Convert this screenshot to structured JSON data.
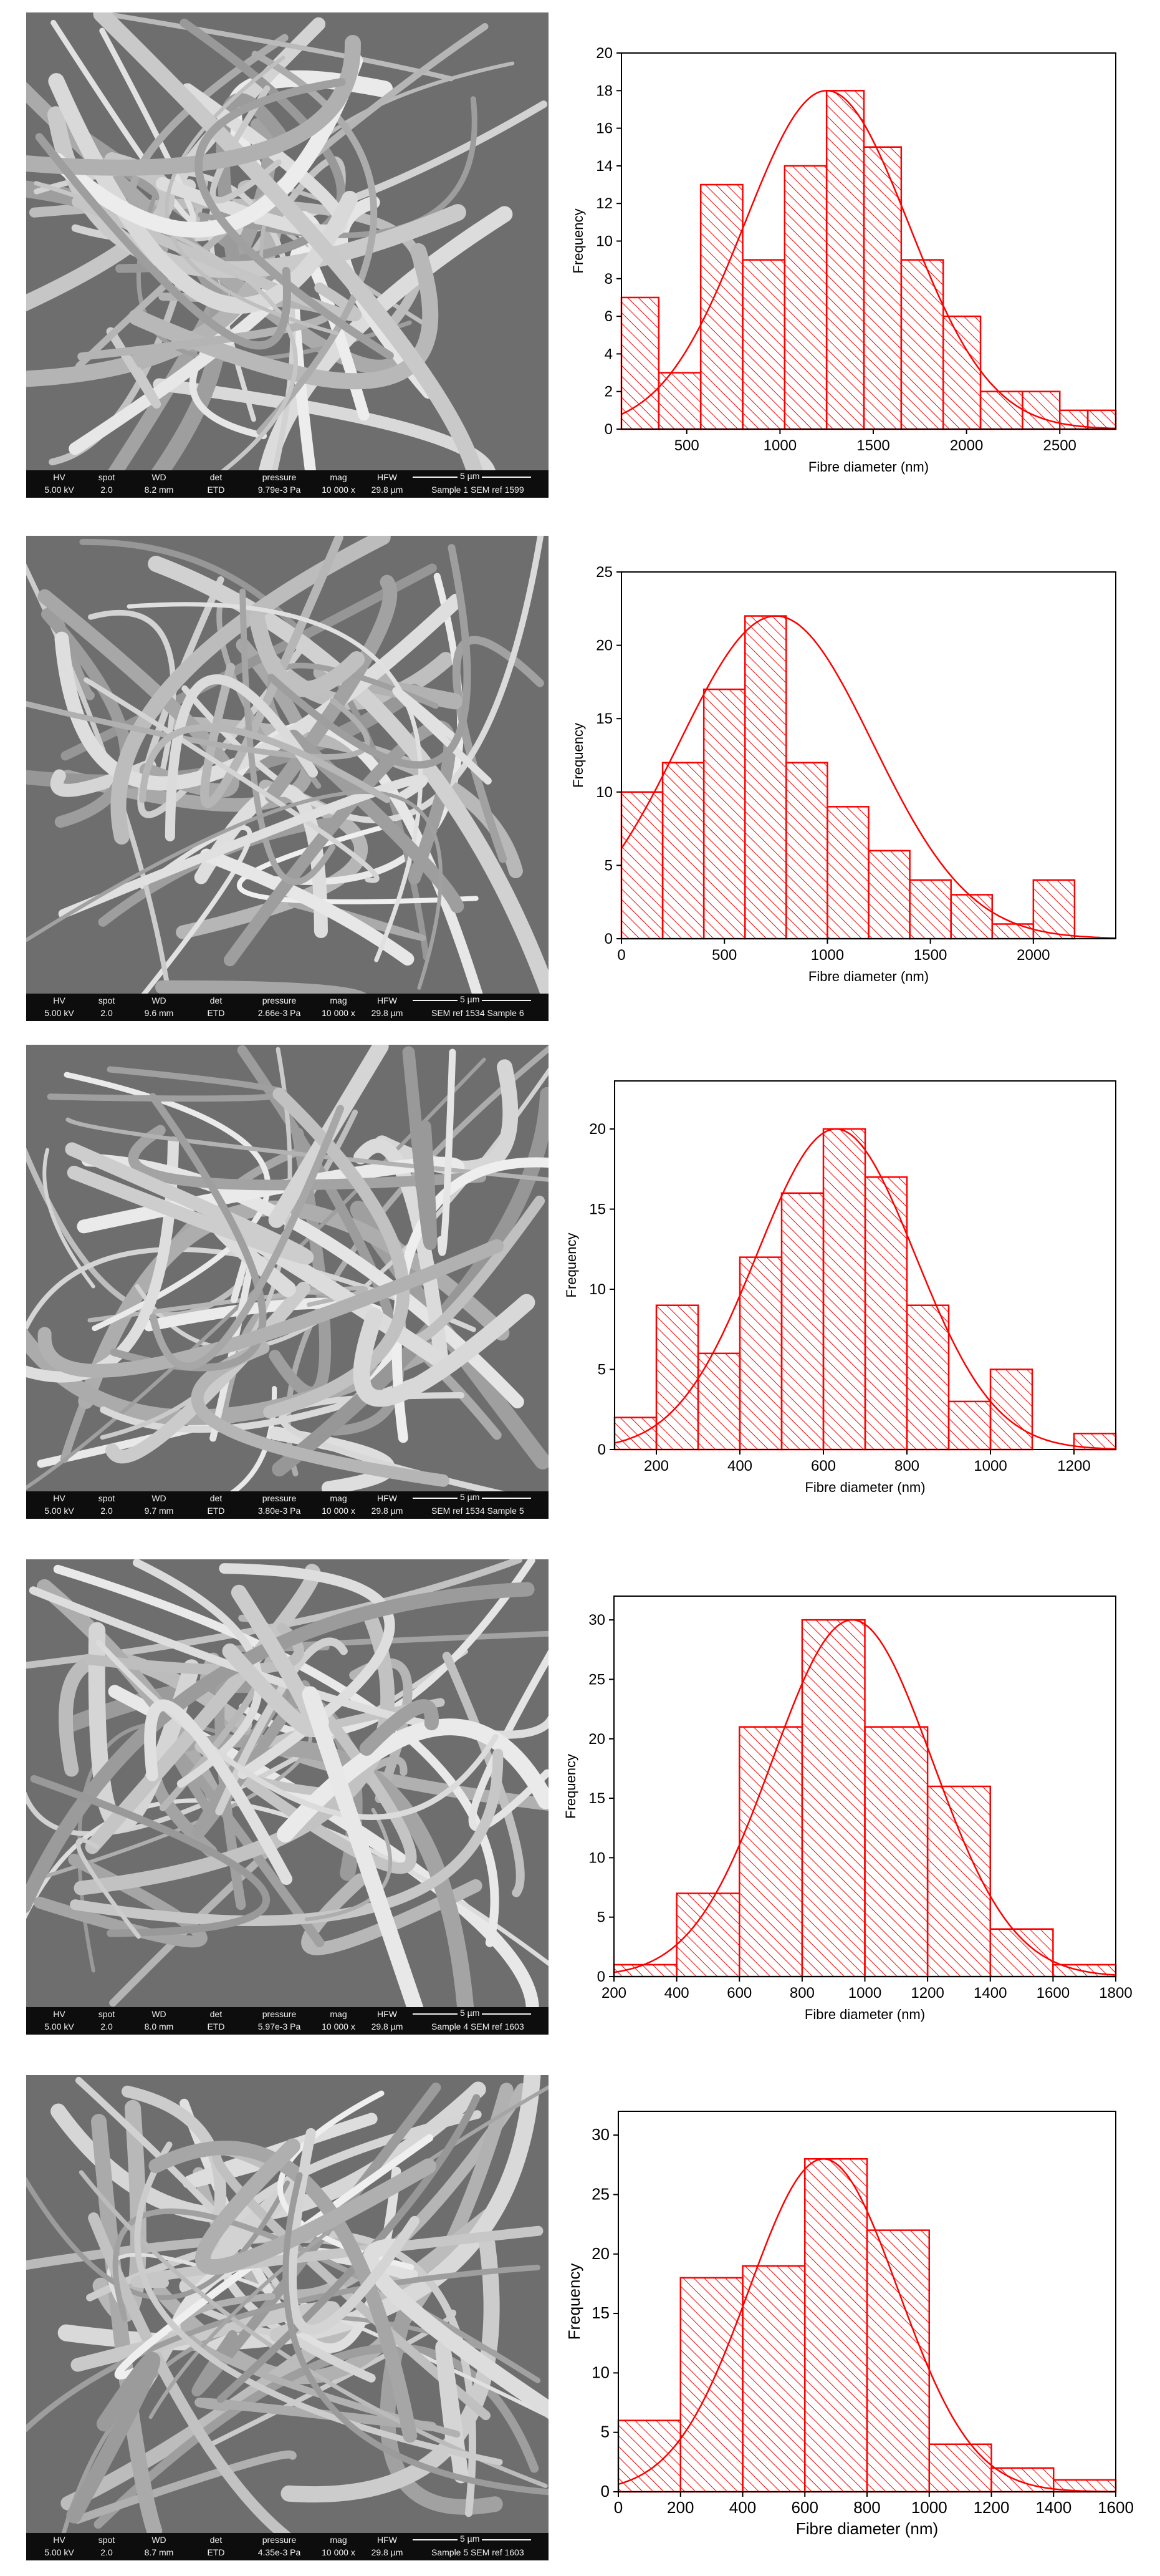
{
  "panels": [
    {
      "sem": {
        "headers": [
          "HV",
          "spot",
          "WD",
          "det",
          "pressure",
          "mag",
          "HFW"
        ],
        "values": [
          "5.00 kV",
          "2.0",
          "8.2 mm",
          "ETD",
          "9.79e-3 Pa",
          "10 000 x",
          "29.8 µm"
        ],
        "scale": "5 µm",
        "sample": "Sample 1 SEM ref 1599"
      },
      "chart": {
        "ytick_font": 24,
        "xlabel_font": 22,
        "ylabel_font": 22
      }
    },
    {
      "sem": {
        "headers": [
          "HV",
          "spot",
          "WD",
          "det",
          "pressure",
          "mag",
          "HFW"
        ],
        "values": [
          "5.00 kV",
          "2.0",
          "9.6 mm",
          "ETD",
          "2.66e-3 Pa",
          "10 000 x",
          "29.8 µm"
        ],
        "scale": "5 µm",
        "sample": "SEM ref 1534 Sample 6"
      },
      "chart": {
        "ytick_font": 24,
        "xlabel_font": 22,
        "ylabel_font": 22
      }
    },
    {
      "sem": {
        "headers": [
          "HV",
          "spot",
          "WD",
          "det",
          "pressure",
          "mag",
          "HFW"
        ],
        "values": [
          "5.00 kV",
          "2.0",
          "9.7 mm",
          "ETD",
          "3.80e-3 Pa",
          "10 000 x",
          "29.8 µm"
        ],
        "scale": "5 µm",
        "sample": "SEM ref 1534 Sample 5"
      },
      "chart": {
        "ytick_font": 24,
        "xlabel_font": 22,
        "ylabel_font": 22
      }
    },
    {
      "sem": {
        "headers": [
          "HV",
          "spot",
          "WD",
          "det",
          "pressure",
          "mag",
          "HFW"
        ],
        "values": [
          "5.00 kV",
          "2.0",
          "8.0 mm",
          "ETD",
          "5.97e-3 Pa",
          "10 000 x",
          "29.8 µm"
        ],
        "scale": "5 µm",
        "sample": "Sample 4 SEM ref 1603"
      },
      "chart": {
        "ytick_font": 24,
        "xlabel_font": 22,
        "ylabel_font": 22
      }
    },
    {
      "sem": {
        "headers": [
          "HV",
          "spot",
          "WD",
          "det",
          "pressure",
          "mag",
          "HFW"
        ],
        "values": [
          "5.00 kV",
          "2.0",
          "8.7 mm",
          "ETD",
          "4.35e-3 Pa",
          "10 000 x",
          "29.8 µm"
        ],
        "scale": "5 µm",
        "sample": "Sample 5 SEM ref 1603"
      },
      "chart": {
        "ytick_font": 26,
        "xlabel_font": 26,
        "ylabel_font": 26
      }
    }
  ],
  "colors": {
    "bar": "#ff0000",
    "axis": "#000000",
    "sem_bg": "#6e6e6e",
    "databar": "#0d0d0d"
  },
  "chart_data": [
    {
      "type": "bar",
      "xlabel": "Fibre diameter (nm)",
      "ylabel": "Frequency",
      "xlim": [
        150,
        2800
      ],
      "ylim": [
        0,
        20
      ],
      "xticks": [
        500,
        1000,
        1500,
        2000,
        2500
      ],
      "yticks": [
        0,
        2,
        4,
        6,
        8,
        10,
        12,
        14,
        16,
        18,
        20
      ],
      "bins": [
        [
          150,
          350,
          7
        ],
        [
          350,
          575,
          3
        ],
        [
          575,
          800,
          13
        ],
        [
          800,
          1025,
          9
        ],
        [
          1025,
          1250,
          14
        ],
        [
          1250,
          1450,
          18
        ],
        [
          1450,
          1650,
          15
        ],
        [
          1650,
          1875,
          9
        ],
        [
          1875,
          2075,
          6
        ],
        [
          2075,
          2300,
          2
        ],
        [
          2300,
          2500,
          2
        ],
        [
          2500,
          2650,
          1
        ],
        [
          2650,
          2800,
          1
        ]
      ],
      "fit": {
        "type": "normal",
        "peak": 18,
        "mean": 1250,
        "sd": 440
      }
    },
    {
      "type": "bar",
      "xlabel": "Fibre diameter (nm)",
      "ylabel": "Frequency",
      "xlim": [
        0,
        2400
      ],
      "ylim": [
        0,
        25
      ],
      "xticks": [
        0,
        500,
        1000,
        1500,
        2000
      ],
      "yticks": [
        0,
        5,
        10,
        15,
        20,
        25
      ],
      "bins": [
        [
          0,
          200,
          10
        ],
        [
          200,
          400,
          12
        ],
        [
          400,
          600,
          17
        ],
        [
          600,
          800,
          22
        ],
        [
          800,
          1000,
          12
        ],
        [
          1000,
          1200,
          9
        ],
        [
          1200,
          1400,
          6
        ],
        [
          1400,
          1600,
          4
        ],
        [
          1600,
          1800,
          3
        ],
        [
          1800,
          2000,
          1
        ],
        [
          2000,
          2200,
          4
        ]
      ],
      "fit": {
        "type": "normal",
        "peak": 22,
        "mean": 750,
        "sd": 470
      }
    },
    {
      "type": "bar",
      "xlabel": "Fibre diameter (nm)",
      "ylabel": "Frequency",
      "xlim": [
        100,
        1300
      ],
      "ylim": [
        0,
        23
      ],
      "xticks": [
        200,
        400,
        600,
        800,
        1000,
        1200
      ],
      "yticks": [
        0,
        5,
        10,
        15,
        20
      ],
      "bins": [
        [
          100,
          200,
          2
        ],
        [
          200,
          300,
          9
        ],
        [
          300,
          400,
          6
        ],
        [
          400,
          500,
          12
        ],
        [
          500,
          600,
          16
        ],
        [
          600,
          700,
          20
        ],
        [
          700,
          800,
          17
        ],
        [
          800,
          900,
          9
        ],
        [
          900,
          1000,
          3
        ],
        [
          1000,
          1100,
          5
        ],
        [
          1100,
          1200,
          0
        ],
        [
          1200,
          1300,
          1
        ]
      ],
      "fit": {
        "type": "normal",
        "peak": 20,
        "mean": 630,
        "sd": 190
      }
    },
    {
      "type": "bar",
      "xlabel": "Fibre diameter (nm)",
      "ylabel": "Frequency",
      "xlim": [
        200,
        1800
      ],
      "ylim": [
        0,
        32
      ],
      "xticks": [
        200,
        400,
        600,
        800,
        1000,
        1200,
        1400,
        1600,
        1800
      ],
      "yticks": [
        0,
        5,
        10,
        15,
        20,
        25,
        30
      ],
      "bins": [
        [
          200,
          400,
          1
        ],
        [
          400,
          600,
          7
        ],
        [
          600,
          800,
          21
        ],
        [
          800,
          1000,
          30
        ],
        [
          1000,
          1200,
          21
        ],
        [
          1200,
          1400,
          16
        ],
        [
          1400,
          1600,
          4
        ],
        [
          1600,
          1800,
          1
        ]
      ],
      "fit": {
        "type": "normal",
        "peak": 30,
        "mean": 960,
        "sd": 255
      }
    },
    {
      "type": "bar",
      "xlabel": "Fibre diameter (nm)",
      "ylabel": "Frequency",
      "xlim": [
        0,
        1600
      ],
      "ylim": [
        0,
        32
      ],
      "xticks": [
        0,
        200,
        400,
        600,
        800,
        1000,
        1200,
        1400,
        1600
      ],
      "yticks": [
        0,
        5,
        10,
        15,
        20,
        25,
        30
      ],
      "bins": [
        [
          0,
          200,
          6
        ],
        [
          200,
          400,
          18
        ],
        [
          400,
          600,
          19
        ],
        [
          600,
          800,
          28
        ],
        [
          800,
          1000,
          22
        ],
        [
          1000,
          1200,
          4
        ],
        [
          1200,
          1400,
          2
        ],
        [
          1400,
          1600,
          1
        ]
      ],
      "fit": {
        "type": "normal",
        "peak": 28,
        "mean": 660,
        "sd": 240
      }
    }
  ]
}
